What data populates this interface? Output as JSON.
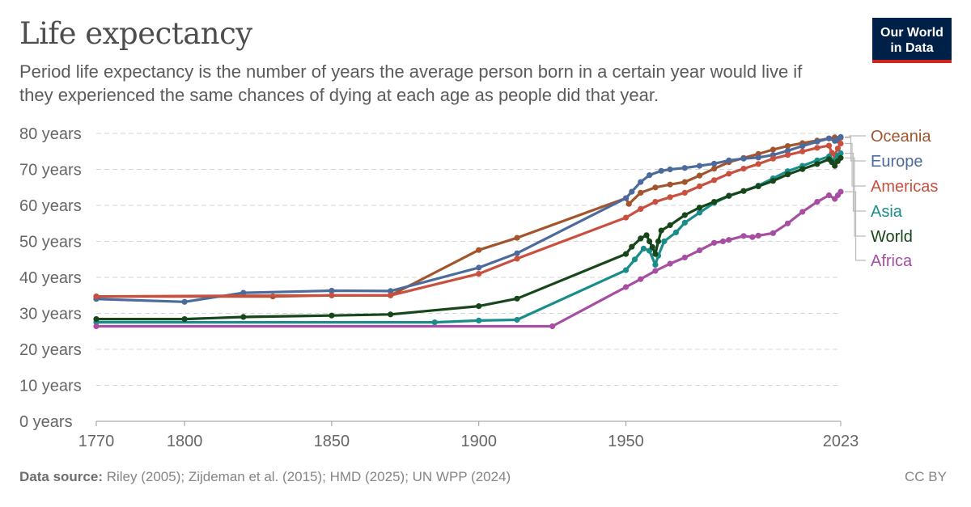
{
  "header": {
    "title": "Life expectancy",
    "subtitle": "Period life expectancy is the number of years the average person born in a certain year would live if they experienced the same chances of dying at each age as people did that year."
  },
  "logo": {
    "line1": "Our World",
    "line2": "in Data"
  },
  "footer": {
    "source_label": "Data source:",
    "source_text": "Riley (2005); Zijdeman et al. (2015); HMD (2025); UN WPP (2024)",
    "license": "CC BY"
  },
  "chart_data": {
    "type": "line",
    "xlim": [
      1770,
      2023
    ],
    "ylim": [
      0,
      80
    ],
    "x_ticks": [
      {
        "value": 1770,
        "label": "1770"
      },
      {
        "value": 1800,
        "label": "1800"
      },
      {
        "value": 1850,
        "label": "1850"
      },
      {
        "value": 1900,
        "label": "1900"
      },
      {
        "value": 1950,
        "label": "1950"
      },
      {
        "value": 2023,
        "label": "2023"
      }
    ],
    "y_ticks": [
      {
        "value": 0,
        "label": "0 years"
      },
      {
        "value": 10,
        "label": "10 years"
      },
      {
        "value": 20,
        "label": "20 years"
      },
      {
        "value": 30,
        "label": "30 years"
      },
      {
        "value": 40,
        "label": "40 years"
      },
      {
        "value": 50,
        "label": "50 years"
      },
      {
        "value": 60,
        "label": "60 years"
      },
      {
        "value": 70,
        "label": "70 years"
      },
      {
        "value": 80,
        "label": "80 years"
      }
    ],
    "grid": "horizontal-dashed",
    "legend": "right",
    "series": [
      {
        "name": "Oceania",
        "color": "#a2552c",
        "points": [
          [
            1770,
            34.7
          ],
          [
            1830,
            34.7
          ],
          [
            1850,
            35.0
          ],
          [
            1870,
            35.0
          ],
          [
            1900,
            47.6
          ],
          [
            1913,
            51.0
          ],
          [
            1950,
            62.0
          ],
          [
            1951,
            60.4
          ],
          [
            1955,
            63.5
          ],
          [
            1960,
            65.0
          ],
          [
            1965,
            65.8
          ],
          [
            1970,
            66.5
          ],
          [
            1975,
            68.3
          ],
          [
            1980,
            70.2
          ],
          [
            1985,
            72.0
          ],
          [
            1990,
            73.2
          ],
          [
            1995,
            74.3
          ],
          [
            2000,
            75.5
          ],
          [
            2005,
            76.5
          ],
          [
            2010,
            77.3
          ],
          [
            2015,
            78.0
          ],
          [
            2019,
            78.6
          ],
          [
            2021,
            78.9
          ],
          [
            2022,
            78.0
          ],
          [
            2023,
            78.8
          ]
        ]
      },
      {
        "name": "Europe",
        "color": "#4c6a9c",
        "points": [
          [
            1770,
            34.0
          ],
          [
            1800,
            33.2
          ],
          [
            1820,
            35.7
          ],
          [
            1850,
            36.3
          ],
          [
            1870,
            36.2
          ],
          [
            1900,
            42.7
          ],
          [
            1913,
            46.7
          ],
          [
            1950,
            62.0
          ],
          [
            1952,
            63.8
          ],
          [
            1955,
            66.5
          ],
          [
            1958,
            68.4
          ],
          [
            1962,
            69.6
          ],
          [
            1965,
            70.0
          ],
          [
            1970,
            70.4
          ],
          [
            1975,
            71.0
          ],
          [
            1980,
            71.6
          ],
          [
            1985,
            72.5
          ],
          [
            1990,
            73.0
          ],
          [
            1995,
            73.3
          ],
          [
            2000,
            74.0
          ],
          [
            2005,
            75.2
          ],
          [
            2010,
            76.5
          ],
          [
            2015,
            77.7
          ],
          [
            2019,
            78.6
          ],
          [
            2021,
            77.9
          ],
          [
            2022,
            78.5
          ],
          [
            2023,
            79.0
          ]
        ]
      },
      {
        "name": "Americas",
        "color": "#c94f3e",
        "points": [
          [
            1770,
            34.7
          ],
          [
            1850,
            35.0
          ],
          [
            1870,
            35.0
          ],
          [
            1900,
            41.0
          ],
          [
            1913,
            45.2
          ],
          [
            1950,
            56.6
          ],
          [
            1955,
            59.0
          ],
          [
            1960,
            61.0
          ],
          [
            1965,
            62.3
          ],
          [
            1970,
            63.5
          ],
          [
            1975,
            65.3
          ],
          [
            1980,
            67.0
          ],
          [
            1985,
            68.8
          ],
          [
            1990,
            70.2
          ],
          [
            1995,
            71.5
          ],
          [
            2000,
            73.0
          ],
          [
            2005,
            74.0
          ],
          [
            2010,
            75.0
          ],
          [
            2015,
            76.0
          ],
          [
            2019,
            76.6
          ],
          [
            2020,
            74.6
          ],
          [
            2021,
            74.0
          ],
          [
            2022,
            75.8
          ],
          [
            2023,
            77.2
          ]
        ]
      },
      {
        "name": "Asia",
        "color": "#1a8d8a",
        "points": [
          [
            1770,
            27.5
          ],
          [
            1885,
            27.5
          ],
          [
            1900,
            28.0
          ],
          [
            1913,
            28.2
          ],
          [
            1950,
            42.0
          ],
          [
            1953,
            45.0
          ],
          [
            1956,
            48.0
          ],
          [
            1958,
            47.4
          ],
          [
            1960,
            43.5
          ],
          [
            1961,
            46.0
          ],
          [
            1963,
            50.0
          ],
          [
            1967,
            52.5
          ],
          [
            1970,
            55.2
          ],
          [
            1975,
            58.0
          ],
          [
            1980,
            60.7
          ],
          [
            1985,
            62.6
          ],
          [
            1990,
            64.0
          ],
          [
            1995,
            65.5
          ],
          [
            2000,
            67.5
          ],
          [
            2005,
            69.5
          ],
          [
            2010,
            71.0
          ],
          [
            2015,
            72.5
          ],
          [
            2019,
            73.6
          ],
          [
            2021,
            72.5
          ],
          [
            2022,
            73.8
          ],
          [
            2023,
            74.5
          ]
        ]
      },
      {
        "name": "World",
        "color": "#17461a",
        "points": [
          [
            1770,
            28.4
          ],
          [
            1800,
            28.4
          ],
          [
            1820,
            29.0
          ],
          [
            1850,
            29.4
          ],
          [
            1870,
            29.7
          ],
          [
            1900,
            32.0
          ],
          [
            1913,
            34.1
          ],
          [
            1950,
            46.5
          ],
          [
            1952,
            48.5
          ],
          [
            1955,
            50.8
          ],
          [
            1957,
            51.7
          ],
          [
            1958,
            50.0
          ],
          [
            1959,
            48.4
          ],
          [
            1960,
            46.5
          ],
          [
            1961,
            50.0
          ],
          [
            1962,
            53.0
          ],
          [
            1965,
            54.5
          ],
          [
            1970,
            57.3
          ],
          [
            1975,
            59.4
          ],
          [
            1980,
            61.0
          ],
          [
            1985,
            62.7
          ],
          [
            1990,
            64.0
          ],
          [
            1995,
            65.3
          ],
          [
            2000,
            66.8
          ],
          [
            2005,
            68.6
          ],
          [
            2010,
            70.1
          ],
          [
            2015,
            71.5
          ],
          [
            2019,
            72.8
          ],
          [
            2020,
            72.0
          ],
          [
            2021,
            71.0
          ],
          [
            2022,
            72.3
          ],
          [
            2023,
            73.2
          ]
        ]
      },
      {
        "name": "Africa",
        "color": "#a64ea1",
        "points": [
          [
            1770,
            26.4
          ],
          [
            1925,
            26.4
          ],
          [
            1950,
            37.3
          ],
          [
            1955,
            39.5
          ],
          [
            1960,
            41.8
          ],
          [
            1965,
            43.8
          ],
          [
            1970,
            45.5
          ],
          [
            1975,
            47.5
          ],
          [
            1980,
            49.6
          ],
          [
            1983,
            50.0
          ],
          [
            1985,
            50.4
          ],
          [
            1990,
            51.5
          ],
          [
            1993,
            51.2
          ],
          [
            1995,
            51.6
          ],
          [
            2000,
            52.3
          ],
          [
            2005,
            55.0
          ],
          [
            2010,
            58.2
          ],
          [
            2015,
            61.0
          ],
          [
            2019,
            62.8
          ],
          [
            2021,
            61.8
          ],
          [
            2022,
            62.8
          ],
          [
            2023,
            63.8
          ]
        ]
      }
    ]
  }
}
